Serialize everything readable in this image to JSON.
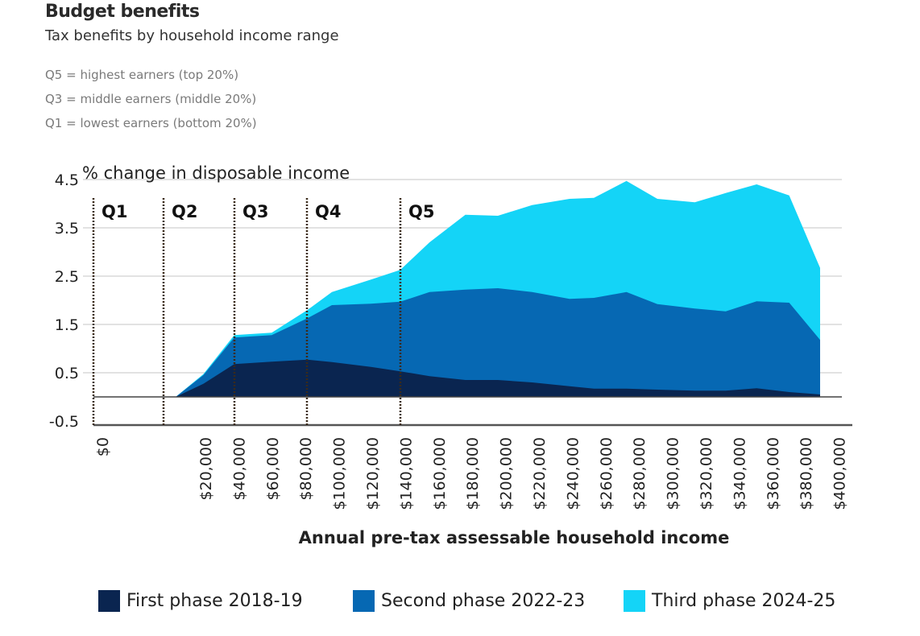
{
  "header": {
    "title": "Budget benefits",
    "subtitle": "Tax benefits by household income range",
    "notes": [
      "Q5 = highest earners (top 20%)",
      "Q3 = middle earners (middle 20%)",
      "Q1 = lowest earners (bottom 20%)"
    ]
  },
  "chart_data": {
    "type": "area",
    "stacked": true,
    "title": "Budget benefits",
    "subtitle": "Tax benefits by household income range",
    "ylabel": "% change in disposable income",
    "xlabel": "Annual pre-tax assessable household income",
    "ylim": [
      -0.5,
      4.5
    ],
    "y_ticks": [
      "4.5",
      "3.5",
      "2.5",
      "1.5",
      "0.5",
      "-0.5"
    ],
    "x_tick_labels": [
      "$0",
      "$20,000",
      "$40,000",
      "$60,000",
      "$80,000",
      "$100,000",
      "$120,000",
      "$140,000",
      "$160,000",
      "$180,000",
      "$200,000",
      "$220,000",
      "$240,000",
      "$260,000",
      "$280,000",
      "$300,000",
      "$320,000",
      "$340,000",
      "$360,000",
      "$380,000",
      "$400,000"
    ],
    "quintiles": [
      "Q1",
      "Q2",
      "Q3",
      "Q4",
      "Q5"
    ],
    "x_thousands": [
      4,
      21,
      40,
      63,
      85,
      100,
      124,
      142,
      160,
      182,
      202,
      223,
      246,
      261,
      281,
      300,
      323,
      342,
      361,
      381,
      400
    ],
    "series_note": "values are cumulative stacked totals",
    "series": [
      {
        "name": "First phase 2018-19",
        "color": "#0a2550",
        "values": [
          0,
          0.27,
          0.68,
          0.73,
          0.77,
          0.72,
          0.62,
          0.53,
          0.43,
          0.35,
          0.35,
          0.3,
          0.22,
          0.17,
          0.17,
          0.15,
          0.13,
          0.13,
          0.18,
          0.1,
          0.05
        ]
      },
      {
        "name": "Second phase 2022-23",
        "color": "#0668b3",
        "values": [
          0,
          0.45,
          1.23,
          1.28,
          1.63,
          1.9,
          1.93,
          1.97,
          2.17,
          2.22,
          2.25,
          2.17,
          2.03,
          2.05,
          2.17,
          1.92,
          1.83,
          1.77,
          1.98,
          1.95,
          1.18
        ]
      },
      {
        "name": "Third phase 2024-25",
        "color": "#14d4f7",
        "values": [
          0,
          0.47,
          1.28,
          1.33,
          1.8,
          2.17,
          2.43,
          2.63,
          3.2,
          3.77,
          3.75,
          3.97,
          4.1,
          4.12,
          4.47,
          4.1,
          4.03,
          4.22,
          4.4,
          4.17,
          2.67
        ]
      }
    ],
    "legend_position": "bottom",
    "grid": true
  }
}
